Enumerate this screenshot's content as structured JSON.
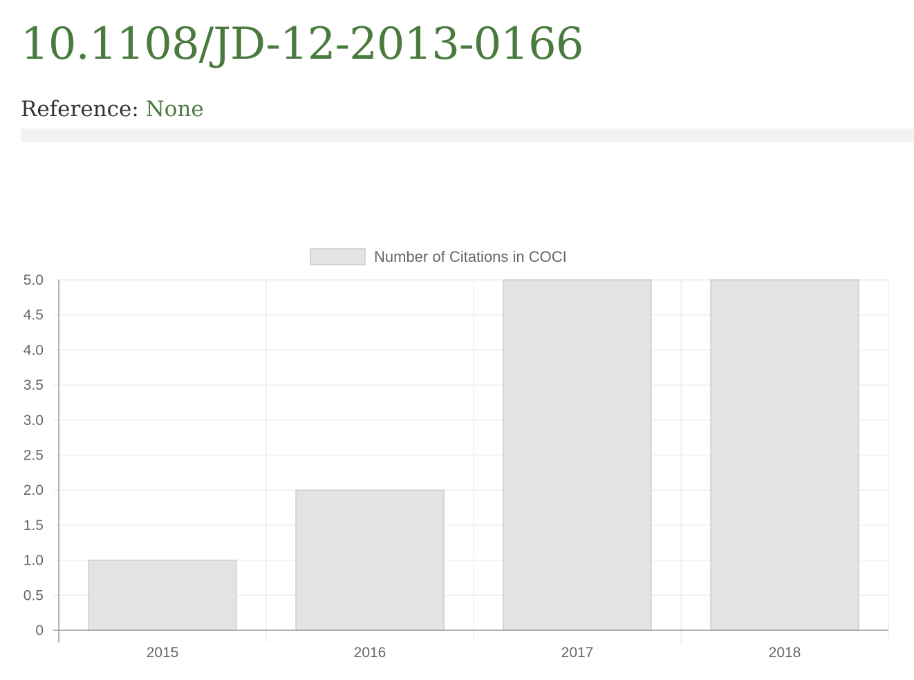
{
  "header": {
    "doi": "10.1108/JD-12-2013-0166",
    "reference_label": "Reference:",
    "reference_value": "None"
  },
  "colors": {
    "title": "#4a7a3d",
    "bar_fill": "#e3e3e3",
    "bar_stroke": "#cccccc",
    "grid": "#e6e6e6",
    "axis": "#999999",
    "tick_text": "#666666"
  },
  "chart_data": {
    "type": "bar",
    "categories": [
      "2015",
      "2016",
      "2017",
      "2018"
    ],
    "series": [
      {
        "name": "Number of Citations in COCI",
        "values": [
          1,
          2,
          5,
          5
        ]
      }
    ],
    "ylim": [
      0,
      5
    ],
    "yticks": [
      "0",
      "0.5",
      "1.0",
      "1.5",
      "2.0",
      "2.5",
      "3.0",
      "3.5",
      "4.0",
      "4.5",
      "5.0"
    ],
    "grid": true,
    "legend": "top-center"
  }
}
